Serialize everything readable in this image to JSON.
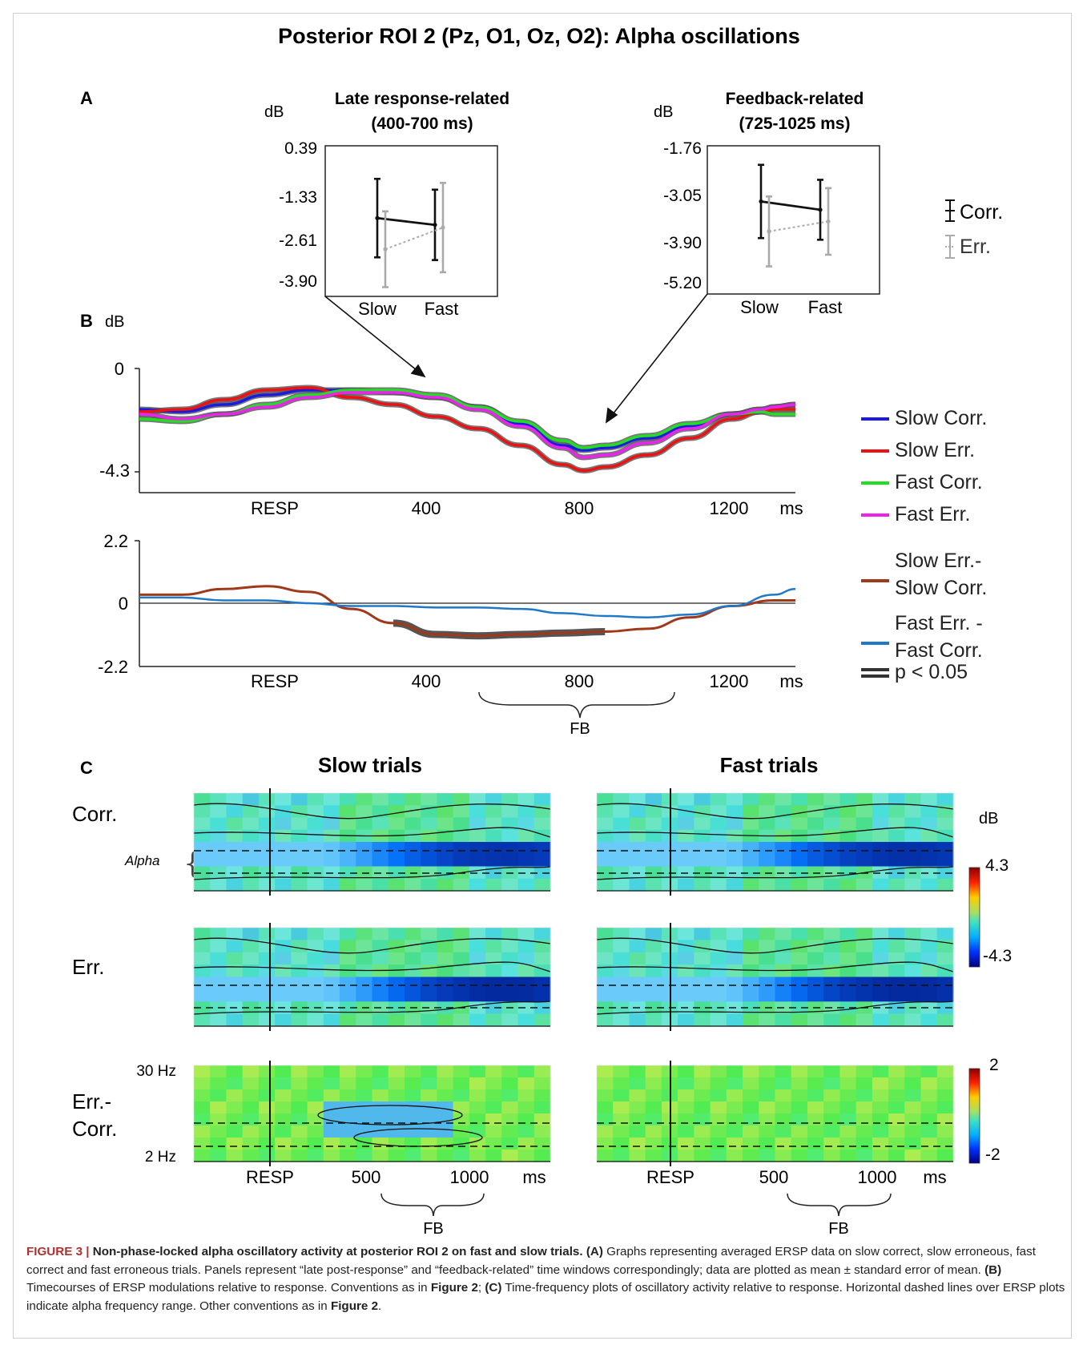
{
  "figure": {
    "title": "Posterior ROI 2 (Pz, O1, Oz, O2): Alpha oscillations",
    "colors": {
      "slow_corr": "#1a1ae0",
      "slow_err": "#ee1111",
      "fast_corr": "#22dd22",
      "fast_err": "#ee22ee",
      "slow_diff": "#a0381a",
      "fast_diff": "#1f78c8",
      "sig": "#555555",
      "corr_marker": "#111111",
      "err_marker": "#aaaaaa"
    }
  },
  "panel_a": {
    "label": "A",
    "legend": {
      "corr": "Corr.",
      "err": "Err."
    },
    "left": {
      "title_line1": "Late response-related",
      "title_line2": "(400-700  ms)",
      "unit": "dB",
      "yticks": [
        "0.39",
        "-1.33",
        "-2.61",
        "-3.90"
      ],
      "xticks": [
        "Slow",
        "Fast"
      ]
    },
    "right": {
      "title_line1": "Feedback-related",
      "title_line2": "(725-1025  ms)",
      "unit": "dB",
      "yticks": [
        "-1.76",
        "-3.05",
        "-3.90",
        "-5.20"
      ],
      "xticks": [
        "Slow",
        "Fast"
      ]
    }
  },
  "panel_b": {
    "label": "B",
    "unit": "dB",
    "top_yticks": [
      "0",
      "-4.3"
    ],
    "bottom_yticks": [
      "2.2",
      "0",
      "-2.2"
    ],
    "xticks": [
      "RESP",
      "400",
      "800",
      "1200",
      "ms"
    ],
    "fb_label": "FB",
    "legend": [
      {
        "key": "slow_corr",
        "line1": "Slow Corr.",
        "line2": ""
      },
      {
        "key": "slow_err",
        "line1": "Slow Err.",
        "line2": ""
      },
      {
        "key": "fast_corr",
        "line1": "Fast Corr.",
        "line2": ""
      },
      {
        "key": "fast_err",
        "line1": "Fast Err.",
        "line2": ""
      },
      {
        "key": "slow_diff",
        "line1": "Slow Err.-",
        "line2": "Slow Corr."
      },
      {
        "key": "fast_diff",
        "line1": "Fast Err. -",
        "line2": "Fast Corr."
      },
      {
        "key": "sig",
        "line1": "p < 0.05",
        "line2": ""
      }
    ]
  },
  "panel_c": {
    "label": "C",
    "col_titles": [
      "Slow trials",
      "Fast trials"
    ],
    "row_labels": [
      "Corr.",
      "Err.",
      "Err.-\nCorr."
    ],
    "row_label_line1": [
      "Corr.",
      "Err.",
      "Err.-"
    ],
    "row_label_line2": [
      "",
      "",
      "Corr."
    ],
    "alpha_label": "Alpha",
    "freq_top": "30 Hz",
    "freq_bottom": "2 Hz",
    "xticks": [
      "RESP",
      "500",
      "1000",
      "ms"
    ],
    "fb_label": "FB",
    "colorbar_top": {
      "unit": "dB",
      "max": "4.3",
      "min": "-4.3"
    },
    "colorbar_bottom": {
      "max": "2",
      "min": "-2"
    }
  },
  "caption": {
    "fig_label": "FIGURE 3 |",
    "bold_title": " Non-phase-locked alpha oscillatory activity at posterior ROI 2 on fast and slow trials.",
    "a_tag": " (A)",
    "a_text": " Graphs representing averaged ERSP data on slow correct, slow erroneous, fast correct and fast erroneous trials. Panels represent “late post-response” and “feedback-related” time windows correspondingly; data are plotted as mean ± standard error of mean.",
    "b_tag": " (B)",
    "b_text": " Timecourses of ERSP modulations relative to response. Conventions as in ",
    "fig2_ref1": "Figure 2",
    "semi": "; ",
    "c_tag": "(C)",
    "c_text": " Time-frequency plots of oscillatory activity relative to response. Horizontal dashed lines over ERSP plots indicate alpha frequency range. Other conventions as in ",
    "fig2_ref2": "Figure 2",
    "end": "."
  },
  "chart_data": [
    {
      "type": "line",
      "title": "Late response-related (400-700 ms)",
      "ylabel": "dB",
      "categories": [
        "Slow",
        "Fast"
      ],
      "ylim": [
        -3.9,
        0.39
      ],
      "series": [
        {
          "name": "Corr.",
          "values": [
            -1.6,
            -1.85
          ],
          "sem": [
            1.45,
            1.3
          ]
        },
        {
          "name": "Err.",
          "values": [
            -2.75,
            -1.95
          ],
          "sem": [
            1.4,
            1.65
          ]
        }
      ]
    },
    {
      "type": "line",
      "title": "Feedback-related (725-1025 ms)",
      "ylabel": "dB",
      "categories": [
        "Slow",
        "Fast"
      ],
      "ylim": [
        -5.2,
        -1.76
      ],
      "series": [
        {
          "name": "Corr.",
          "values": [
            -2.95,
            -3.2
          ],
          "sem": [
            1.1,
            0.9
          ]
        },
        {
          "name": "Err.",
          "values": [
            -3.85,
            -3.55
          ],
          "sem": [
            1.05,
            1.0
          ]
        }
      ]
    },
    {
      "type": "line",
      "ylabel": "dB",
      "ylim": [
        -4.3,
        0
      ],
      "xlim": [
        -200,
        1350
      ],
      "x": [
        -200,
        -100,
        0,
        100,
        200,
        300,
        400,
        500,
        600,
        700,
        800,
        850,
        900,
        1000,
        1100,
        1200,
        1270,
        1300,
        1350
      ],
      "series": [
        {
          "name": "Slow Corr.",
          "values": [
            -1.7,
            -1.8,
            -1.5,
            -1.1,
            -0.9,
            -0.9,
            -1.0,
            -1.2,
            -1.6,
            -2.3,
            -3.2,
            -3.4,
            -3.3,
            -2.9,
            -2.4,
            -1.9,
            -1.7,
            -1.6,
            -1.5
          ]
        },
        {
          "name": "Slow Err.",
          "values": [
            -1.8,
            -1.7,
            -1.3,
            -0.9,
            -0.8,
            -1.2,
            -1.5,
            -2.0,
            -2.5,
            -3.2,
            -4.0,
            -4.25,
            -4.1,
            -3.6,
            -2.9,
            -2.1,
            -1.8,
            -1.7,
            -1.7
          ]
        },
        {
          "name": "Fast Corr.",
          "values": [
            -2.1,
            -2.2,
            -1.9,
            -1.5,
            -1.1,
            -0.9,
            -0.9,
            -1.1,
            -1.6,
            -2.2,
            -3.0,
            -3.3,
            -3.2,
            -2.8,
            -2.3,
            -1.9,
            -1.8,
            -1.9,
            -1.9
          ]
        },
        {
          "name": "Fast Err.",
          "values": [
            -1.9,
            -2.1,
            -1.9,
            -1.6,
            -1.2,
            -1.0,
            -1.0,
            -1.2,
            -1.7,
            -2.4,
            -3.3,
            -3.7,
            -3.6,
            -3.1,
            -2.5,
            -1.9,
            -1.7,
            -1.6,
            -1.5
          ]
        }
      ]
    },
    {
      "type": "line",
      "ylabel": "dB",
      "ylim": [
        -2.2,
        2.2
      ],
      "xlim": [
        -200,
        1350
      ],
      "x": [
        -200,
        -100,
        0,
        100,
        200,
        300,
        400,
        500,
        600,
        700,
        800,
        900,
        1000,
        1100,
        1200,
        1300,
        1350
      ],
      "series": [
        {
          "name": "Slow Err.- Slow Corr.",
          "values": [
            0.3,
            0.3,
            0.5,
            0.6,
            0.4,
            -0.2,
            -0.7,
            -1.1,
            -1.15,
            -1.1,
            -1.05,
            -1.0,
            -0.9,
            -0.5,
            -0.1,
            0.1,
            0.1
          ]
        },
        {
          "name": "Fast Err. - Fast Corr.",
          "values": [
            0.2,
            0.2,
            0.1,
            0.1,
            0.0,
            -0.1,
            -0.1,
            -0.15,
            -0.15,
            -0.2,
            -0.35,
            -0.45,
            -0.5,
            -0.4,
            -0.1,
            0.3,
            0.5
          ]
        }
      ],
      "significant_x_ranges": [
        [
          400,
          950
        ]
      ]
    }
  ]
}
